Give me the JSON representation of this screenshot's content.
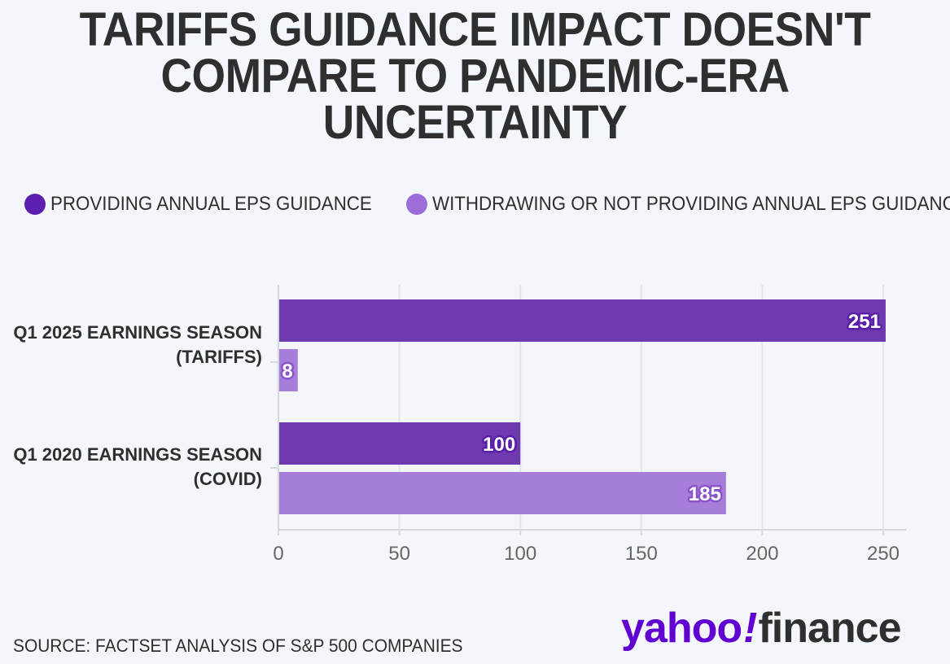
{
  "title_lines": [
    "TARIFFS GUIDANCE IMPACT DOESN'T",
    "COMPARE TO PANDEMIC-ERA",
    "UNCERTAINTY"
  ],
  "legend": [
    {
      "label": "PROVIDING ANNUAL EPS GUIDANCE",
      "color": "#5c1fb0"
    },
    {
      "label": "WITHDRAWING OR NOT PROVIDING ANNUAL EPS GUIDANCE",
      "color": "#9d6ed9"
    }
  ],
  "source": "SOURCE: FACTSET ANALYSIS OF S&P 500 COMPANIES",
  "brand": {
    "yahoo": "yahoo",
    "bang": "!",
    "finance": "finance",
    "color": "#6001d2"
  },
  "chart_data": {
    "type": "bar",
    "orientation": "horizontal",
    "title": "TARIFFS GUIDANCE IMPACT DOESN'T COMPARE TO PANDEMIC-ERA UNCERTAINTY",
    "categories": [
      [
        "Q1 2025 EARNINGS SEASON",
        "(TARIFFS)"
      ],
      [
        "Q1 2020 EARNINGS SEASON",
        "(COVID)"
      ]
    ],
    "series": [
      {
        "name": "PROVIDING ANNUAL EPS GUIDANCE",
        "values": [
          251,
          100
        ],
        "color": "#6f3ab0",
        "labelColor": "#5a1fa8"
      },
      {
        "name": "WITHDRAWING OR NOT PROVIDING ANNUAL EPS GUIDANCE",
        "values": [
          8,
          185
        ],
        "color": "#a67ed9",
        "labelColor": "#8a55cc"
      }
    ],
    "xlim": [
      0,
      260
    ],
    "xticks": [
      0,
      50,
      100,
      150,
      200,
      250
    ],
    "xlabel": "",
    "ylabel": "",
    "grid": true,
    "legend_position": "top-left"
  }
}
